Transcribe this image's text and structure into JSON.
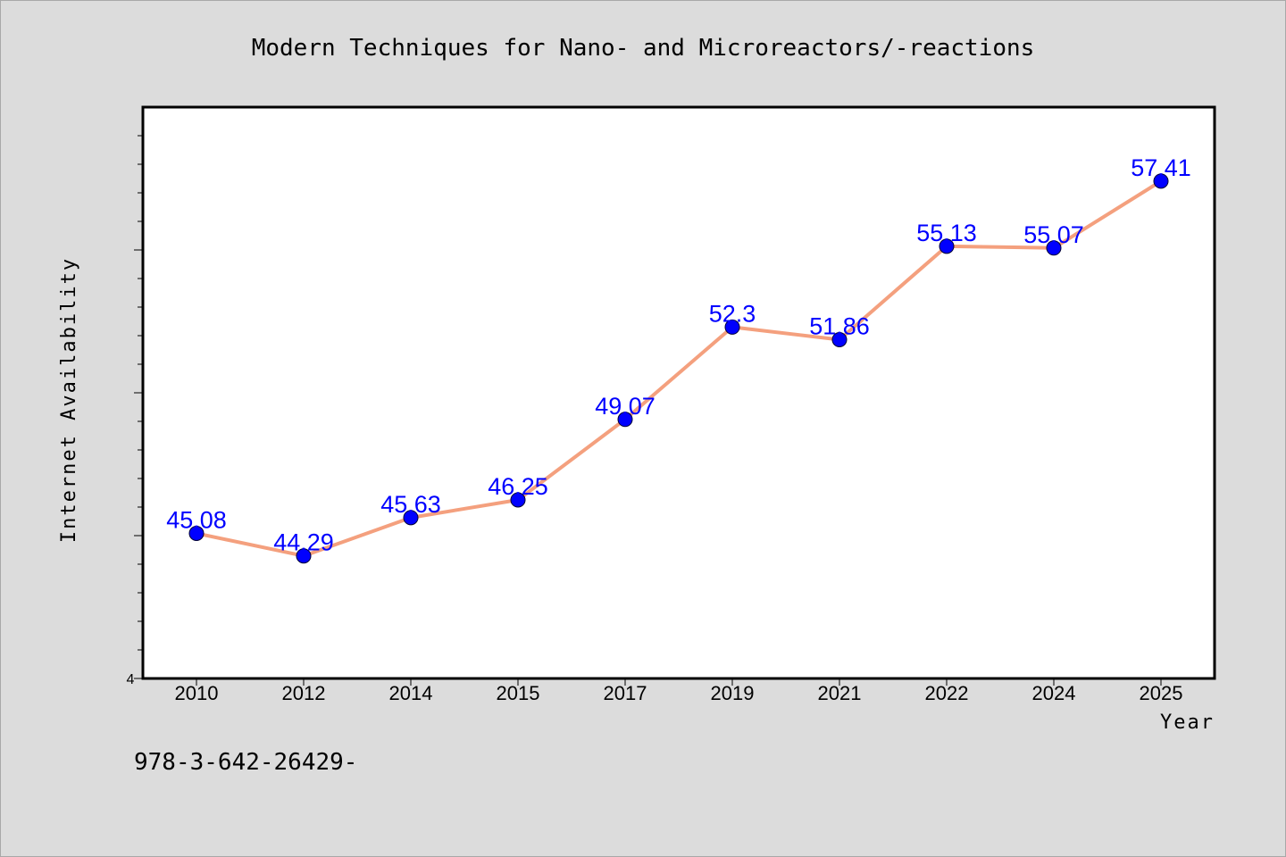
{
  "chart_data": {
    "type": "line",
    "title": "Modern Techniques for Nano- and Microreactors/-reactions",
    "xlabel": "Year",
    "ylabel": "Internet Availability",
    "categories": [
      "2010",
      "2012",
      "2014",
      "2015",
      "2017",
      "2019",
      "2021",
      "2022",
      "2024",
      "2025"
    ],
    "series": [
      {
        "values": [
          45.08,
          44.29,
          45.63,
          46.25,
          49.07,
          52.3,
          51.86,
          55.13,
          55.07,
          57.41
        ],
        "labels": [
          "45.08",
          "44.29",
          "45.63",
          "46.25",
          "49.07",
          "52.3",
          "51.86",
          "55.13",
          "55.07",
          "57.41"
        ],
        "line_color": "#f4a07e",
        "marker_color": "#0000ff"
      }
    ],
    "ylim": [
      40,
      60
    ],
    "y_tick_labels": [
      "4"
    ],
    "grid": false,
    "legend": "none",
    "footnote": "978-3-642-26429-"
  },
  "colors": {
    "background": "#dcdcdc",
    "plot_area": "#ffffff",
    "line": "#f4a07e",
    "marker": "#0000ff",
    "data_label": "#0000ff"
  }
}
